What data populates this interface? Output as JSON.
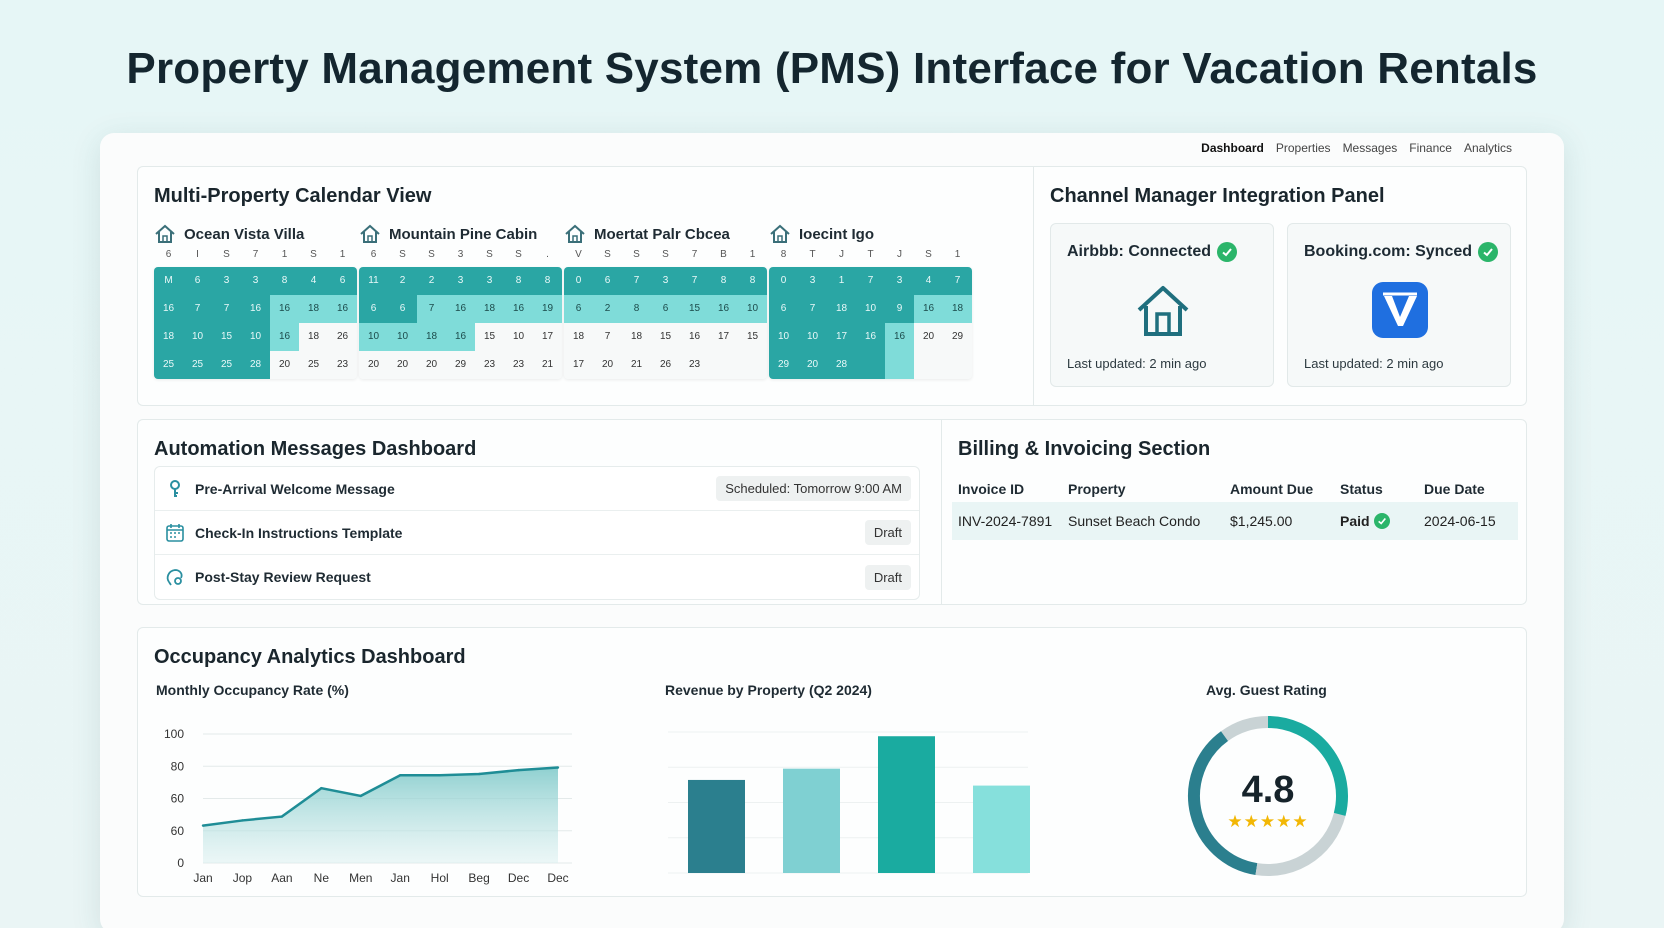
{
  "page_title": "Property Management System (PMS) Interface for Vacation Rentals",
  "nav": [
    "Dashboard",
    "Properties",
    "Messages",
    "Finance",
    "Analytics"
  ],
  "calendar": {
    "title": "Multi-Property Calendar View",
    "properties": [
      {
        "name": "Ocean Vista Villa",
        "dow": [
          "6",
          "I",
          "S",
          "7",
          "1",
          "S",
          "1"
        ],
        "rows": [
          [
            "M",
            "6",
            "3",
            "3",
            "8",
            "4",
            "6"
          ],
          [
            "16",
            "7",
            "7",
            "16",
            "16",
            "18",
            "16"
          ],
          [
            "18",
            "10",
            "15",
            "10",
            "16",
            "18",
            "26"
          ],
          [
            "25",
            "25",
            "25",
            "28",
            "20",
            "25",
            "23"
          ]
        ],
        "states": [
          [
            "b",
            "b",
            "b",
            "b",
            "b",
            "b",
            "b"
          ],
          [
            "b",
            "b",
            "b",
            "b",
            "l",
            "l",
            "l"
          ],
          [
            "b",
            "b",
            "b",
            "b",
            "l",
            "w",
            "w"
          ],
          [
            "b",
            "b",
            "b",
            "b",
            "w",
            "w",
            "w"
          ]
        ]
      },
      {
        "name": "Mountain Pine Cabin",
        "dow": [
          "6",
          "S",
          "S",
          "3",
          "S",
          "S",
          "."
        ],
        "rows": [
          [
            "11",
            "2",
            "2",
            "3",
            "3",
            "8",
            "8"
          ],
          [
            "6",
            "6",
            "7",
            "16",
            "18",
            "16",
            "19"
          ],
          [
            "10",
            "10",
            "18",
            "16",
            "15",
            "10",
            "17"
          ],
          [
            "20",
            "20",
            "20",
            "29",
            "23",
            "23",
            "21"
          ]
        ],
        "states": [
          [
            "b",
            "b",
            "b",
            "b",
            "b",
            "b",
            "b"
          ],
          [
            "b",
            "b",
            "l",
            "l",
            "l",
            "l",
            "l"
          ],
          [
            "l",
            "l",
            "l",
            "l",
            "w",
            "w",
            "w"
          ],
          [
            "w",
            "w",
            "w",
            "w",
            "w",
            "w",
            "w"
          ]
        ]
      },
      {
        "name": "Moertat Palr Cbcea",
        "dow": [
          "V",
          "S",
          "S",
          "S",
          "7",
          "B",
          "1"
        ],
        "rows": [
          [
            "0",
            "6",
            "7",
            "3",
            "7",
            "8",
            "8"
          ],
          [
            "6",
            "2",
            "8",
            "6",
            "15",
            "16",
            "10"
          ],
          [
            "18",
            "7",
            "18",
            "15",
            "16",
            "17",
            "15"
          ],
          [
            "17",
            "20",
            "21",
            "26",
            "23",
            "",
            ""
          ]
        ],
        "states": [
          [
            "b",
            "b",
            "b",
            "b",
            "b",
            "b",
            "b"
          ],
          [
            "l",
            "l",
            "l",
            "l",
            "l",
            "l",
            "l"
          ],
          [
            "w",
            "w",
            "w",
            "w",
            "w",
            "w",
            "w"
          ],
          [
            "w",
            "w",
            "w",
            "w",
            "w",
            "w",
            "w"
          ]
        ]
      },
      {
        "name": "Ioecint Igo",
        "dow": [
          "8",
          "T",
          "J",
          "T",
          "J",
          "S",
          "1"
        ],
        "rows": [
          [
            "0",
            "3",
            "1",
            "7",
            "3",
            "4",
            "7"
          ],
          [
            "6",
            "7",
            "18",
            "10",
            "9",
            "16",
            "18"
          ],
          [
            "10",
            "10",
            "17",
            "16",
            "16",
            "20",
            "29"
          ],
          [
            "29",
            "20",
            "28",
            "",
            "",
            "",
            ""
          ]
        ],
        "states": [
          [
            "b",
            "b",
            "b",
            "b",
            "b",
            "b",
            "b"
          ],
          [
            "b",
            "b",
            "b",
            "b",
            "b",
            "l",
            "l"
          ],
          [
            "b",
            "b",
            "b",
            "b",
            "l",
            "w",
            "w"
          ],
          [
            "b",
            "b",
            "b",
            "b",
            "l",
            "w",
            "w"
          ]
        ]
      }
    ]
  },
  "channels": {
    "title": "Channel Manager Integration Panel",
    "cards": [
      {
        "label": "Airbbb: Connected",
        "updated": "Last updated: 2 min ago",
        "icon": "house-icon"
      },
      {
        "label": "Booking.com: Synced",
        "updated": "Last updated: 2 min ago",
        "icon": "booking-v-icon"
      }
    ]
  },
  "automation": {
    "title": "Automation Messages Dashboard",
    "messages": [
      {
        "label": "Pre-Arrival Welcome Message",
        "status": "Scheduled: Tomorrow 9:00 AM",
        "icon": "key-icon"
      },
      {
        "label": "Check-In Instructions Template",
        "status": "Draft",
        "icon": "calendar-icon"
      },
      {
        "label": "Post-Stay Review Request",
        "status": "Draft",
        "icon": "review-icon"
      }
    ]
  },
  "billing": {
    "title": "Billing & Invoicing Section",
    "headers": [
      "Invoice ID",
      "Property",
      "Amount Due",
      "Status",
      "Due Date"
    ],
    "rows": [
      [
        "INV-2024-7891",
        "Sunset Beach Condo",
        "$1,245.00",
        "Paid",
        "2024-06-15"
      ]
    ]
  },
  "analytics": {
    "title": "Occupancy Analytics Dashboard",
    "rating_title": "Avg. Guest Rating",
    "rating_value": "4.8",
    "rating_stars": "★★★★★",
    "rating_fraction": 0.58
  },
  "colors": {
    "teal_dark": "#2b7f8e",
    "teal": "#1aaba0",
    "teal_light": "#7fd0d2",
    "teal_pale": "#86e0dc",
    "gray_ring": "#c9d3d5",
    "star": "#f2b705",
    "check": "#2bb56a"
  },
  "chart_data": [
    {
      "type": "area",
      "title": "Monthly Occupancy Rate (%)",
      "x": [
        "Jan",
        "Jop",
        "Aan",
        "Ne",
        "Men",
        "Jan",
        "Hol",
        "Beg",
        "Dec",
        "Dec"
      ],
      "yticks": [
        "100",
        "80",
        "60",
        "60",
        "0"
      ],
      "ylim": [
        0,
        100
      ],
      "values": [
        29,
        33,
        36,
        58,
        52,
        68,
        68,
        69,
        72,
        74
      ],
      "grid": true
    },
    {
      "type": "bar",
      "title": "Revenue by Property (Q2 2024)",
      "categories": [
        "",
        "",
        "",
        ""
      ],
      "values": [
        66,
        74,
        97,
        62
      ],
      "colors": [
        "#2b7f8e",
        "#7fd0d2",
        "#1aaba0",
        "#86e0dc"
      ],
      "ylim": [
        0,
        100
      ],
      "grid": true
    }
  ]
}
